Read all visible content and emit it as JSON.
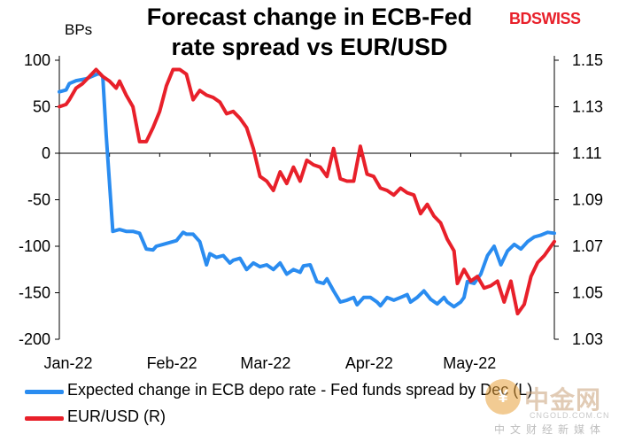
{
  "chart_data": {
    "type": "line",
    "title": [
      "Forecast change in ECB-Fed",
      "rate spread vs EUR/USD"
    ],
    "ylabel": "BPs",
    "xlabel": "",
    "left_axis": {
      "range": [
        -200,
        100
      ],
      "ticks": [
        100,
        50,
        0,
        -50,
        -100,
        -150,
        -200
      ]
    },
    "right_axis": {
      "range": [
        1.03,
        1.15
      ],
      "ticks": [
        "1.15",
        "1.13",
        "1.11",
        "1.09",
        "1.07",
        "1.05",
        "1.03"
      ]
    },
    "x_range": [
      0,
      148
    ],
    "x_ticks": [
      {
        "label": "Jan-22",
        "x": 0
      },
      {
        "label": "Feb-22",
        "x": 31
      },
      {
        "label": "Mar-22",
        "x": 59
      },
      {
        "label": "Apr-22",
        "x": 90
      },
      {
        "label": "May-22",
        "x": 120
      }
    ],
    "series": [
      {
        "name": "Expected change in ECB depo rate - Fed funds spread by Dec (L)",
        "axis": "left",
        "color": "#2a8cf0",
        "x": [
          0,
          2,
          3,
          5,
          8,
          10,
          12,
          13,
          14,
          16,
          18,
          20,
          22,
          24,
          26,
          28,
          29,
          31,
          33,
          35,
          37,
          38,
          40,
          42,
          44,
          45,
          47,
          49,
          51,
          52,
          54,
          56,
          58,
          60,
          62,
          64,
          66,
          68,
          70,
          72,
          73,
          75,
          77,
          79,
          80,
          82,
          84,
          86,
          88,
          89,
          91,
          93,
          95,
          96,
          98,
          100,
          102,
          104,
          105,
          107,
          109,
          111,
          113,
          115,
          116,
          118,
          120,
          121,
          122,
          124,
          126,
          128,
          130,
          132,
          134,
          136,
          138,
          140,
          142,
          144,
          146,
          148
        ],
        "values": [
          66,
          68,
          75,
          78,
          80,
          83,
          86,
          82,
          20,
          -84,
          -82,
          -84,
          -84,
          -86,
          -103,
          -104,
          -100,
          -98,
          -96,
          -94,
          -85,
          -87,
          -87,
          -95,
          -120,
          -108,
          -112,
          -110,
          -118,
          -115,
          -113,
          -125,
          -118,
          -122,
          -120,
          -125,
          -118,
          -130,
          -125,
          -128,
          -121,
          -120,
          -138,
          -140,
          -135,
          -148,
          -160,
          -158,
          -155,
          -163,
          -155,
          -155,
          -160,
          -164,
          -155,
          -158,
          -155,
          -152,
          -160,
          -155,
          -148,
          -157,
          -162,
          -155,
          -160,
          -165,
          -160,
          -155,
          -138,
          -140,
          -130,
          -110,
          -100,
          -120,
          -105,
          -98,
          -103,
          -95,
          -90,
          -88,
          -85,
          -86
        ]
      },
      {
        "name": "EUR/USD (R)",
        "axis": "right",
        "color": "#e8202a",
        "x": [
          0,
          2,
          3,
          5,
          7,
          9,
          11,
          13,
          15,
          17,
          18,
          20,
          22,
          24,
          26,
          28,
          30,
          32,
          34,
          36,
          38,
          40,
          42,
          44,
          46,
          48,
          50,
          52,
          54,
          56,
          58,
          60,
          62,
          64,
          66,
          68,
          70,
          72,
          74,
          76,
          78,
          80,
          82,
          84,
          86,
          88,
          90,
          92,
          94,
          96,
          98,
          100,
          102,
          104,
          106,
          108,
          110,
          112,
          114,
          116,
          118,
          119,
          121,
          123,
          125,
          127,
          129,
          131,
          133,
          135,
          137,
          139,
          141,
          143,
          145,
          148
        ],
        "values": [
          1.13,
          1.131,
          1.133,
          1.138,
          1.14,
          1.143,
          1.146,
          1.143,
          1.141,
          1.138,
          1.141,
          1.135,
          1.13,
          1.115,
          1.115,
          1.121,
          1.128,
          1.139,
          1.146,
          1.146,
          1.144,
          1.133,
          1.137,
          1.135,
          1.134,
          1.132,
          1.127,
          1.128,
          1.125,
          1.121,
          1.112,
          1.1,
          1.098,
          1.094,
          1.102,
          1.097,
          1.104,
          1.098,
          1.107,
          1.105,
          1.104,
          1.1,
          1.112,
          1.099,
          1.098,
          1.098,
          1.113,
          1.101,
          1.1,
          1.095,
          1.094,
          1.092,
          1.095,
          1.093,
          1.092,
          1.084,
          1.088,
          1.083,
          1.08,
          1.073,
          1.068,
          1.054,
          1.06,
          1.055,
          1.057,
          1.052,
          1.053,
          1.055,
          1.046,
          1.055,
          1.041,
          1.045,
          1.057,
          1.063,
          1.066,
          1.072
        ]
      }
    ]
  },
  "logo_text": "BDSWISS",
  "watermark": {
    "main": "中金网",
    "url": "CNGOLD.COM.CN",
    "sub": "中文财经新媒体"
  }
}
